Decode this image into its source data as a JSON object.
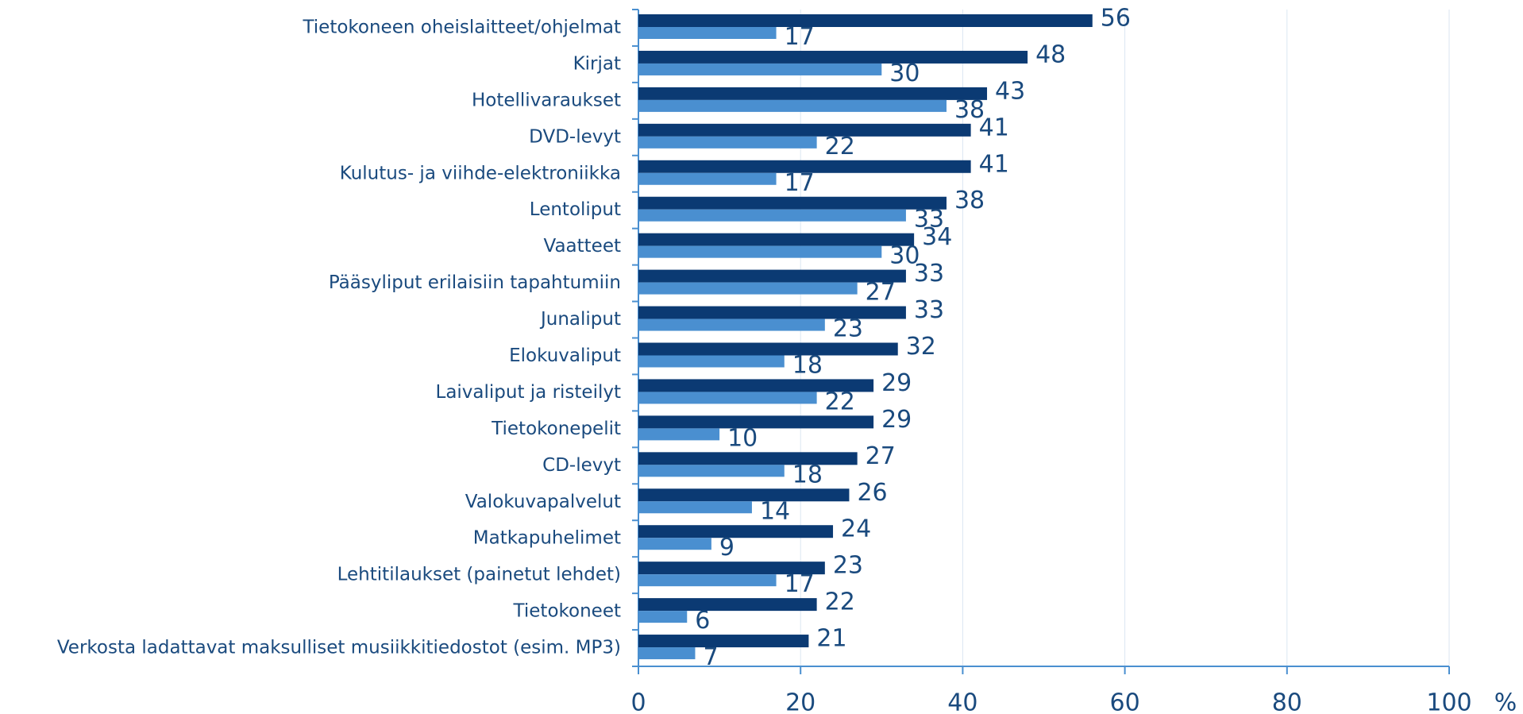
{
  "chart_data": {
    "type": "bar",
    "orientation": "horizontal",
    "categories": [
      "Tietokoneen oheislaitteet/ohjelmat",
      "Kirjat",
      "Hotellivaraukset",
      "DVD-levyt",
      "Kulutus- ja viihde-elektroniikka",
      "Lentoliput",
      "Vaatteet",
      "Pääsyliput erilaisiin tapahtumiin",
      "Junaliput",
      "Elokuvaliput",
      "Laivaliput ja risteilyt",
      "Tietokonepelit",
      "CD-levyt",
      "Valokuvapalvelut",
      "Matkapuhelimet",
      "Lehtitilaukset (painetut lehdet)",
      "Tietokoneet",
      "Verkosta ladattavat maksulliset musiikkitiedostot (esim. MP3)"
    ],
    "series": [
      {
        "color": "#0b3a73",
        "values": [
          56,
          48,
          43,
          41,
          41,
          38,
          34,
          33,
          33,
          32,
          29,
          29,
          27,
          26,
          24,
          23,
          22,
          21
        ]
      },
      {
        "color": "#4a8fd0",
        "values": [
          17,
          30,
          38,
          22,
          17,
          33,
          30,
          27,
          23,
          18,
          22,
          10,
          18,
          14,
          9,
          17,
          6,
          7
        ]
      }
    ],
    "xlabel": "%",
    "xlim": [
      0,
      100
    ],
    "xticks": [
      0,
      20,
      40,
      60,
      80,
      100
    ],
    "grid": true
  }
}
